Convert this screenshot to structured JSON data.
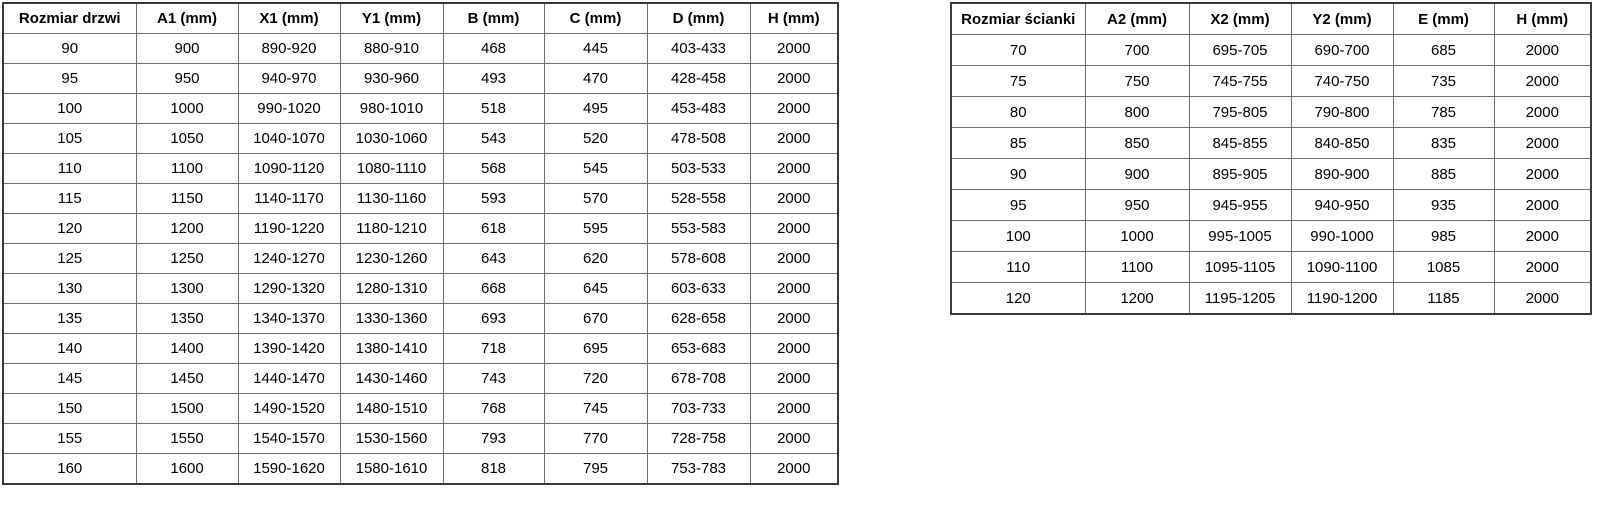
{
  "door_table": {
    "headers": [
      "Rozmiar drzwi",
      "A1 (mm)",
      "X1 (mm)",
      "Y1 (mm)",
      "B (mm)",
      "C (mm)",
      "D (mm)",
      "H (mm)"
    ],
    "rows": [
      [
        "90",
        "900",
        "890-920",
        "880-910",
        "468",
        "445",
        "403-433",
        "2000"
      ],
      [
        "95",
        "950",
        "940-970",
        "930-960",
        "493",
        "470",
        "428-458",
        "2000"
      ],
      [
        "100",
        "1000",
        "990-1020",
        "980-1010",
        "518",
        "495",
        "453-483",
        "2000"
      ],
      [
        "105",
        "1050",
        "1040-1070",
        "1030-1060",
        "543",
        "520",
        "478-508",
        "2000"
      ],
      [
        "110",
        "1100",
        "1090-1120",
        "1080-1110",
        "568",
        "545",
        "503-533",
        "2000"
      ],
      [
        "115",
        "1150",
        "1140-1170",
        "1130-1160",
        "593",
        "570",
        "528-558",
        "2000"
      ],
      [
        "120",
        "1200",
        "1190-1220",
        "1180-1210",
        "618",
        "595",
        "553-583",
        "2000"
      ],
      [
        "125",
        "1250",
        "1240-1270",
        "1230-1260",
        "643",
        "620",
        "578-608",
        "2000"
      ],
      [
        "130",
        "1300",
        "1290-1320",
        "1280-1310",
        "668",
        "645",
        "603-633",
        "2000"
      ],
      [
        "135",
        "1350",
        "1340-1370",
        "1330-1360",
        "693",
        "670",
        "628-658",
        "2000"
      ],
      [
        "140",
        "1400",
        "1390-1420",
        "1380-1410",
        "718",
        "695",
        "653-683",
        "2000"
      ],
      [
        "145",
        "1450",
        "1440-1470",
        "1430-1460",
        "743",
        "720",
        "678-708",
        "2000"
      ],
      [
        "150",
        "1500",
        "1490-1520",
        "1480-1510",
        "768",
        "745",
        "703-733",
        "2000"
      ],
      [
        "155",
        "1550",
        "1540-1570",
        "1530-1560",
        "793",
        "770",
        "728-758",
        "2000"
      ],
      [
        "160",
        "1600",
        "1590-1620",
        "1580-1610",
        "818",
        "795",
        "753-783",
        "2000"
      ]
    ]
  },
  "wall_table": {
    "headers": [
      "Rozmiar ścianki",
      "A2 (mm)",
      "X2 (mm)",
      "Y2 (mm)",
      "E (mm)",
      "H (mm)"
    ],
    "rows": [
      [
        "70",
        "700",
        "695-705",
        "690-700",
        "685",
        "2000"
      ],
      [
        "75",
        "750",
        "745-755",
        "740-750",
        "735",
        "2000"
      ],
      [
        "80",
        "800",
        "795-805",
        "790-800",
        "785",
        "2000"
      ],
      [
        "85",
        "850",
        "845-855",
        "840-850",
        "835",
        "2000"
      ],
      [
        "90",
        "900",
        "895-905",
        "890-900",
        "885",
        "2000"
      ],
      [
        "95",
        "950",
        "945-955",
        "940-950",
        "935",
        "2000"
      ],
      [
        "100",
        "1000",
        "995-1005",
        "990-1000",
        "985",
        "2000"
      ],
      [
        "110",
        "1100",
        "1095-1105",
        "1090-1100",
        "1085",
        "2000"
      ],
      [
        "120",
        "1200",
        "1195-1205",
        "1190-1200",
        "1185",
        "2000"
      ]
    ]
  },
  "colors": {
    "background": "#ffffff",
    "text": "#000000",
    "grid_border": "#6e6e6e",
    "outer_border": "#3a3a3a"
  }
}
